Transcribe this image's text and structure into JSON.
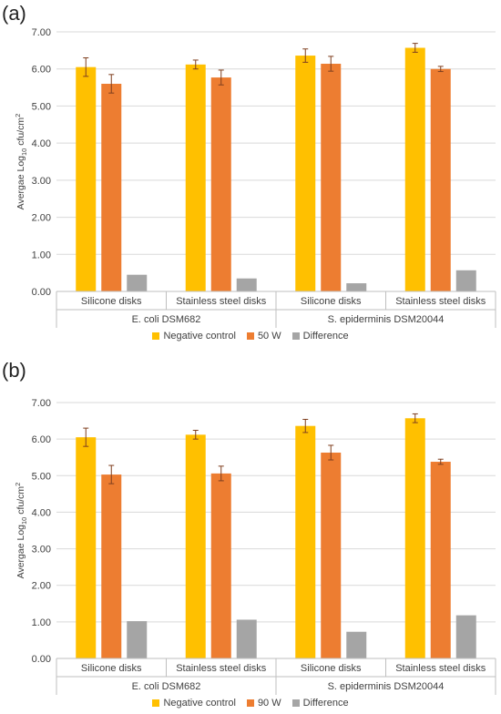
{
  "panels": [
    {
      "label": "(a)",
      "chart_data": {
        "type": "bar",
        "ylabel": "Avergae Log10 cfu/cm2",
        "ylabel_parts": {
          "pre": "Avergae Log",
          "sub": "10",
          "mid": " cfu/cm",
          "sup": "2"
        },
        "ylim": [
          0,
          7
        ],
        "yticks": [
          "0.00",
          "1.00",
          "2.00",
          "3.00",
          "4.00",
          "5.00",
          "6.00",
          "7.00"
        ],
        "grid": true,
        "legend_placement": "bottom",
        "groups": [
          {
            "name": "E. coli DSM682",
            "categories": [
              "Silicone disks",
              "Stainless steel disks"
            ]
          },
          {
            "name": "S. epiderminis DSM20044",
            "categories": [
              "Silicone disks",
              "Stainless steel disks"
            ]
          }
        ],
        "categories": [
          "Silicone disks",
          "Stainless steel disks",
          "Silicone disks",
          "Stainless steel disks"
        ],
        "series": [
          {
            "name": "Negative control",
            "color": "#FFC000",
            "values": [
              6.05,
              6.12,
              6.36,
              6.57
            ],
            "errors": [
              0.25,
              0.12,
              0.18,
              0.12
            ]
          },
          {
            "name": "50 W",
            "color": "#ED7D31",
            "values": [
              5.6,
              5.77,
              6.14,
              6.0
            ],
            "errors": [
              0.25,
              0.2,
              0.2,
              0.07
            ]
          },
          {
            "name": "Difference",
            "color": "#A5A5A5",
            "values": [
              0.45,
              0.35,
              0.22,
              0.57
            ],
            "errors": [
              0,
              0,
              0,
              0
            ]
          }
        ]
      }
    },
    {
      "label": "(b)",
      "chart_data": {
        "type": "bar",
        "ylabel": "Avergae Log10 cfu/cm2",
        "ylabel_parts": {
          "pre": "Avergae Log",
          "sub": "10",
          "mid": " cfu/cm",
          "sup": "2"
        },
        "ylim": [
          0,
          7
        ],
        "yticks": [
          "0.00",
          "1.00",
          "2.00",
          "3.00",
          "4.00",
          "5.00",
          "6.00",
          "7.00"
        ],
        "grid": true,
        "legend_placement": "bottom",
        "groups": [
          {
            "name": "E. coli DSM682",
            "categories": [
              "Silicone disks",
              "Stainless steel disks"
            ]
          },
          {
            "name": "S. epiderminis DSM20044",
            "categories": [
              "Silicone disks",
              "Stainless steel disks"
            ]
          }
        ],
        "categories": [
          "Silicone disks",
          "Stainless steel disks",
          "Silicone disks",
          "Stainless steel disks"
        ],
        "series": [
          {
            "name": "Negative control",
            "color": "#FFC000",
            "values": [
              6.05,
              6.12,
              6.36,
              6.57
            ],
            "errors": [
              0.25,
              0.12,
              0.18,
              0.12
            ]
          },
          {
            "name": "90 W",
            "color": "#ED7D31",
            "values": [
              5.03,
              5.06,
              5.63,
              5.38
            ],
            "errors": [
              0.25,
              0.2,
              0.2,
              0.07
            ]
          },
          {
            "name": "Difference",
            "color": "#A5A5A5",
            "values": [
              1.02,
              1.06,
              0.73,
              1.18
            ],
            "errors": [
              0,
              0,
              0,
              0
            ]
          }
        ]
      }
    }
  ]
}
